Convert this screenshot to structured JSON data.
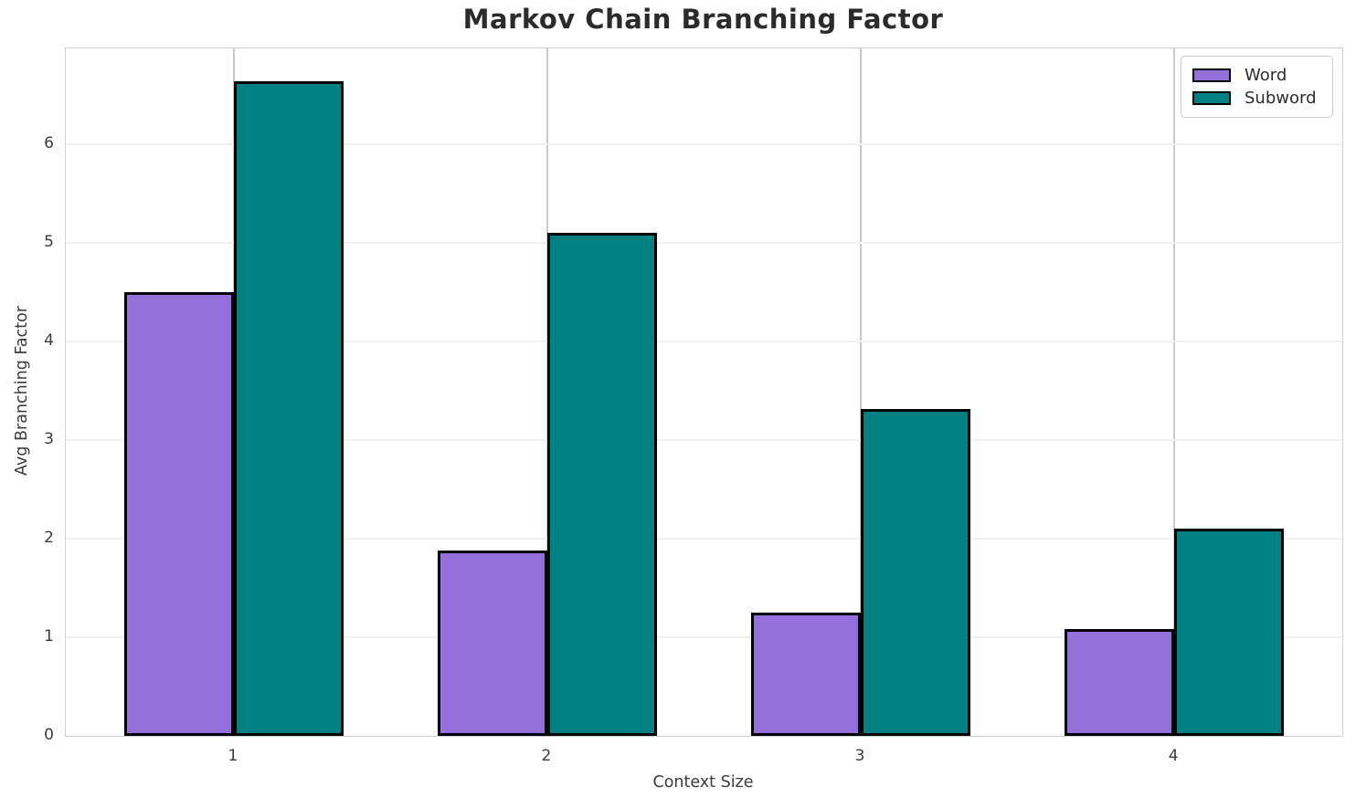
{
  "chart_data": {
    "type": "bar",
    "title": "Markov Chain Branching Factor",
    "xlabel": "Context Size",
    "ylabel": "Avg Branching Factor",
    "categories": [
      "1",
      "2",
      "3",
      "4"
    ],
    "series": [
      {
        "name": "Word",
        "color": "#9370DB",
        "values": [
          4.5,
          1.88,
          1.25,
          1.08
        ]
      },
      {
        "name": "Subword",
        "color": "#008080",
        "values": [
          6.64,
          5.1,
          3.31,
          2.1
        ]
      }
    ],
    "ylim": [
      0,
      6.97
    ],
    "yticks": [
      "0",
      "1",
      "2",
      "3",
      "4",
      "5",
      "6"
    ],
    "grid": true,
    "legend": {
      "position": "upper-right",
      "entries": [
        "Word",
        "Subword"
      ]
    },
    "colors": {
      "bar_edge": "#000000",
      "hgrid": "#f0f0f0",
      "vgrid": "#c9c9c9",
      "spine": "#d0d0d0",
      "title_text": "#2b2b2b",
      "tick_text": "#3b3b3b"
    }
  }
}
